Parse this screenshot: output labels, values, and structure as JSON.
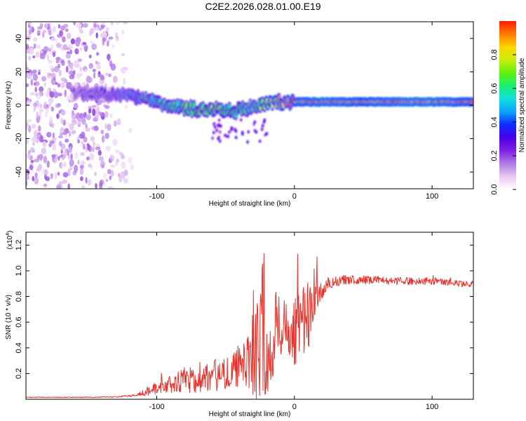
{
  "figure_title": "C2E2.2026.028.01.00.E19",
  "colors": {
    "snr_line": "#e8322b",
    "axis": "#000000",
    "colormap": [
      "#ffffff",
      "#e9c9f3",
      "#b07be6",
      "#7f1fe6",
      "#4d00e8",
      "#0a2cff",
      "#0aa4ff",
      "#12e0e0",
      "#18f070",
      "#5ef20a",
      "#c8ee0a",
      "#ffd400",
      "#ff7a00",
      "#ff1a00"
    ]
  },
  "chart_data": [
    {
      "type": "heatmap",
      "name": "spectrogram",
      "title": "",
      "xlabel": "Height of straight line (km)",
      "ylabel": "Frequency (Hz)",
      "xlim": [
        -195,
        130
      ],
      "ylim": [
        -50,
        50
      ],
      "xticks": [
        -100,
        0,
        100
      ],
      "xtick_labels": [
        "-100",
        "0",
        "100"
      ],
      "yticks": [
        -40,
        -20,
        0,
        20,
        40
      ],
      "ytick_labels": [
        "-40",
        "-20",
        "0",
        "20",
        "40"
      ],
      "colorbar": {
        "label": "Normalized spectral amplitude",
        "range": [
          0,
          1
        ],
        "ticks": [
          0,
          0.2,
          0.4,
          0.6,
          0.8
        ],
        "tick_labels": [
          "0.0",
          "0.2",
          "0.4",
          "0.6",
          "0.8"
        ]
      },
      "ridge": {
        "description": "Doppler frequency ridge vs height",
        "x": [
          -160,
          -140,
          -120,
          -100,
          -80,
          -60,
          -40,
          -30,
          -20,
          -10,
          0,
          20,
          50,
          80,
          100,
          130
        ],
        "frequency": [
          7,
          7,
          6,
          2,
          -2,
          -3,
          -3,
          -1,
          1,
          2,
          2,
          2,
          2,
          2,
          2,
          2
        ],
        "amplitude": [
          0.3,
          0.35,
          0.45,
          0.6,
          0.65,
          0.7,
          0.65,
          0.55,
          0.8,
          0.85,
          0.9,
          0.95,
          0.9,
          0.95,
          0.95,
          0.9
        ]
      },
      "noise_region_x": [
        -195,
        -115
      ],
      "noise_amplitude": [
        0.05,
        0.2
      ]
    },
    {
      "type": "line",
      "name": "snr",
      "title": "",
      "xlabel": "Height of straight line (km)",
      "ylabel": "SNR (10 * v/v)",
      "y_scale_label": "(x10",
      "y_scale_exp": "4",
      "y_scale_close": ")",
      "xlim": [
        -195,
        130
      ],
      "ylim": [
        0,
        1.3
      ],
      "xticks": [
        -100,
        0,
        100
      ],
      "xtick_labels": [
        "-100",
        "0",
        "100"
      ],
      "yticks": [
        0.2,
        0.4,
        0.6,
        0.8,
        1.0,
        1.2
      ],
      "ytick_labels": [
        "0.2",
        "0.4",
        "0.6",
        "0.8",
        "1.0",
        "1.2"
      ],
      "series": [
        {
          "name": "SNR",
          "x": [
            -195,
            -170,
            -150,
            -130,
            -115,
            -105,
            -95,
            -85,
            -75,
            -65,
            -55,
            -45,
            -35,
            -28,
            -22,
            -20,
            -15,
            -10,
            -5,
            0,
            5,
            10,
            15,
            20,
            25,
            30,
            40,
            50,
            60,
            70,
            80,
            90,
            100,
            110,
            120,
            130
          ],
          "y": [
            0.015,
            0.015,
            0.015,
            0.018,
            0.03,
            0.07,
            0.1,
            0.13,
            0.15,
            0.17,
            0.19,
            0.22,
            0.28,
            0.35,
            0.6,
            0.22,
            0.5,
            0.6,
            0.58,
            0.55,
            0.6,
            0.65,
            0.75,
            0.85,
            0.9,
            0.92,
            0.93,
            0.93,
            0.93,
            0.92,
            0.92,
            0.92,
            0.92,
            0.91,
            0.9,
            0.9
          ],
          "spread": [
            0.003,
            0.003,
            0.003,
            0.004,
            0.01,
            0.04,
            0.06,
            0.09,
            0.1,
            0.12,
            0.13,
            0.13,
            0.18,
            0.45,
            0.6,
            0.3,
            0.3,
            0.28,
            0.22,
            0.3,
            0.32,
            0.3,
            0.18,
            0.08,
            0.05,
            0.04,
            0.035,
            0.035,
            0.03,
            0.03,
            0.03,
            0.03,
            0.03,
            0.025,
            0.025,
            0.025
          ]
        }
      ]
    }
  ]
}
